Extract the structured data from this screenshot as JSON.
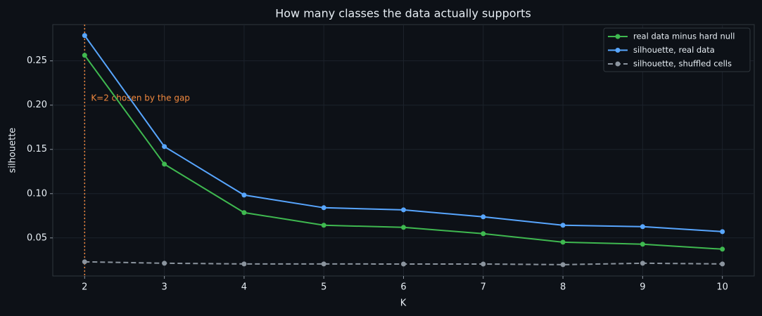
{
  "chart_data": {
    "type": "line",
    "title": "How many classes the data actually supports",
    "x_label": "K",
    "y_label": "silhouette",
    "x": [
      2,
      3,
      4,
      5,
      6,
      7,
      8,
      9,
      10
    ],
    "series": [
      {
        "name": "real data minus hard null",
        "color": "#3fb950",
        "style": "solid",
        "values": [
          0.2563,
          0.1333,
          0.0786,
          0.0643,
          0.0619,
          0.0548,
          0.0452,
          0.0429,
          0.0373
        ]
      },
      {
        "name": "silhouette, real data",
        "color": "#58a6ff",
        "style": "solid",
        "values": [
          0.2786,
          0.1532,
          0.0984,
          0.0841,
          0.0817,
          0.0738,
          0.0643,
          0.0627,
          0.0571
        ]
      },
      {
        "name": "silhouette, shuffled cells",
        "color": "#8b949e",
        "style": "dashed",
        "values": [
          0.023,
          0.0214,
          0.0206,
          0.0206,
          0.0205,
          0.0205,
          0.0198,
          0.0214,
          0.0206
        ]
      }
    ],
    "annotation": {
      "text": "K=2 chosen by the gap",
      "x": 2,
      "color": "#f0883e"
    },
    "xlim": [
      1.6,
      10.4
    ],
    "ylim": [
      0.007,
      0.291
    ],
    "xticks": [
      2,
      3,
      4,
      5,
      6,
      7,
      8,
      9,
      10
    ],
    "yticks": [
      0.05,
      {
        "value": 0.1,
        "label": "0.10"
      },
      0.15,
      {
        "value": 0.2,
        "label": "0.20"
      },
      0.25
    ],
    "grid": true,
    "legend": "upper right"
  }
}
